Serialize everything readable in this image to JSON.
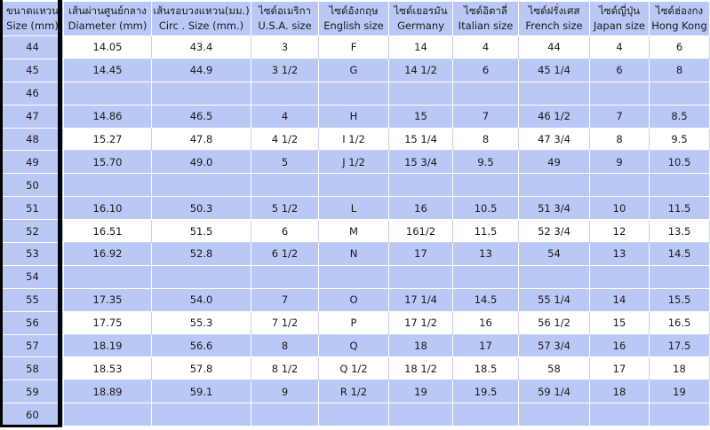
{
  "headers": [
    {
      "line1": "ขนาดแหวน",
      "line2": "Size (mm)"
    },
    {
      "line1": "เส้นผ่านศูนย์กลาง",
      "line2": "Diameter (mm)"
    },
    {
      "line1": "เส้นรอบวงแหวน(มม.)",
      "line2": "Circ . Size (mm.)"
    },
    {
      "line1": "ไซด์อเมริกา",
      "line2": "U.S.A. size"
    },
    {
      "line1": "ไซด์อังกฤษ",
      "line2": "English size"
    },
    {
      "line1": "ไซด์เยอรมัน",
      "line2": "Germany"
    },
    {
      "line1": "ไซด์อิตาลี่",
      "line2": "Italian size"
    },
    {
      "line1": "ไซด์ฝรั่งเศส",
      "line2": "French size"
    },
    {
      "line1": "ไซด์ญี่ปุ่น",
      "line2": "Japan size"
    },
    {
      "line1": "ไซด์ฮ่องกง",
      "line2": "Hong Kong"
    }
  ],
  "rows": [
    [
      "44",
      "14.05",
      "43.4",
      "3",
      "F",
      "14",
      "4",
      "44",
      "4",
      "6"
    ],
    [
      "45",
      "14.45",
      "44.9",
      "3 1/2",
      "G",
      "14 1/2",
      "6",
      "45 1/4",
      "6",
      "8"
    ],
    [
      "46",
      "",
      "",
      "",
      "",
      "",
      "",
      "",
      "",
      ""
    ],
    [
      "47",
      "14.86",
      "46.5",
      "4",
      "H",
      "15",
      "7",
      "46 1/2",
      "7",
      "8.5"
    ],
    [
      "48",
      "15.27",
      "47.8",
      "4 1/2",
      "I 1/2",
      "15 1/4",
      "8",
      "47 3/4",
      "8",
      "9.5"
    ],
    [
      "49",
      "15.70",
      "49.0",
      "5",
      "J 1/2",
      "15 3/4",
      "9.5",
      "49",
      "9",
      "10.5"
    ],
    [
      "50",
      "",
      "",
      "",
      "",
      "",
      "",
      "",
      "",
      ""
    ],
    [
      "51",
      "16.10",
      "50.3",
      "5 1/2",
      "L",
      "16",
      "10.5",
      "51 3/4",
      "10",
      "11.5"
    ],
    [
      "52",
      "16.51",
      "51.5",
      "6",
      "M",
      "161/2",
      "11.5",
      "52 3/4",
      "12",
      "13.5"
    ],
    [
      "53",
      "16.92",
      "52.8",
      "6 1/2",
      "N",
      "17",
      "13",
      "54",
      "13",
      "14.5"
    ],
    [
      "54",
      "",
      "",
      "",
      "",
      "",
      "",
      "",
      "",
      ""
    ],
    [
      "55",
      "17.35",
      "54.0",
      "7",
      "O",
      "17 1/4",
      "14.5",
      "55 1/4",
      "14",
      "15.5"
    ],
    [
      "56",
      "17.75",
      "55.3",
      "7 1/2",
      "P",
      "17 1/2",
      "16",
      "56 1/2",
      "15",
      "16.5"
    ],
    [
      "57",
      "18.19",
      "56.6",
      "8",
      "Q",
      "18",
      "17",
      "57 3/4",
      "16",
      "17.5"
    ],
    [
      "58",
      "18.53",
      "57.8",
      "8 1/2",
      "Q 1/2",
      "18 1/2",
      "18.5",
      "58",
      "17",
      "18"
    ],
    [
      "59",
      "18.89",
      "59.1",
      "9",
      "R 1/2",
      "19",
      "19.5",
      "59 1/4",
      "18",
      "19"
    ],
    [
      "60",
      "",
      "",
      "",
      "",
      "",
      "",
      "",
      "",
      ""
    ]
  ],
  "colors": {
    "header_bg": "#b9c8f5",
    "alt_row_bg": "#b9c8f5",
    "frame": "#000000"
  }
}
